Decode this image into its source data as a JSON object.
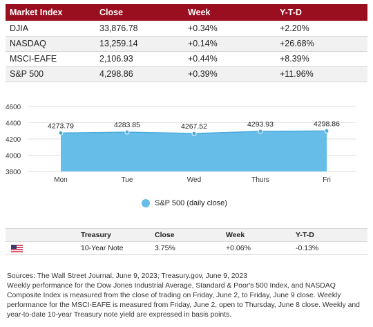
{
  "market_table": {
    "headers": [
      "Market Index",
      "Close",
      "Week",
      "Y-T-D"
    ],
    "rows": [
      [
        "DJIA",
        "33,876.78",
        "+0.34%",
        "+2.20%"
      ],
      [
        "NASDAQ",
        "13,259.14",
        "+0.14%",
        "+26.68%"
      ],
      [
        "MSCI-EAFE",
        "2,106.93",
        "+0.44%",
        "+8.39%"
      ],
      [
        "S&P 500",
        "4,298.86",
        "+0.39%",
        "+11.96%"
      ]
    ]
  },
  "chart_data": {
    "type": "area",
    "categories": [
      "Mon",
      "Tue",
      "Wed",
      "Thurs",
      "Fri"
    ],
    "series": [
      {
        "name": "S&P 500 (daily close)",
        "values": [
          4273.79,
          4283.85,
          4267.52,
          4293.93,
          4298.86
        ]
      }
    ],
    "data_labels": [
      "4273.79",
      "4283.85",
      "4267.52",
      "4293.93",
      "4298.86"
    ],
    "yticks": [
      3800,
      4000,
      4200,
      4400,
      4600
    ],
    "ylim": [
      3800,
      4600
    ],
    "grid": true,
    "legend_position": "bottom",
    "color": "#66bde8"
  },
  "treasury_table": {
    "headers": [
      "",
      "Treasury",
      "Close",
      "Week",
      "Y-T-D"
    ],
    "row": {
      "icon": "us-flag-icon",
      "name": "10-Year Note",
      "close": "3.75%",
      "week": "+0.06%",
      "ytd": "-0.13%"
    }
  },
  "notes": [
    "Sources: The Wall Street Journal, June 9, 2023; Treasury.gov, June 9, 2023",
    "Weekly performance for the Dow Jones Industrial Average, Standard & Poor's 500 Index, and NASDAQ Composite Index is measured from the close of trading on Friday, June 2, to Friday, June 9 close. Weekly performance for the MSCI-EAFE is measured from Friday, June 2, open to Thursday, June 8 close. Weekly and year-to-date 10-year Treasury note yield are expressed in basis points."
  ]
}
